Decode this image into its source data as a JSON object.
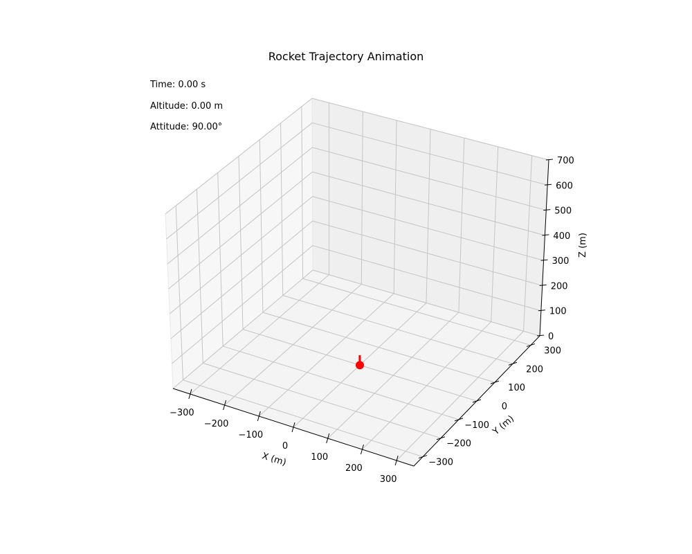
{
  "chart_data": {
    "type": "scatter",
    "projection": "3d",
    "title": "Rocket Trajectory Animation",
    "xlabel": "X (m)",
    "ylabel": "Y (m)",
    "zlabel": "Z (m)",
    "xlim": [
      -350,
      350
    ],
    "ylim": [
      -350,
      350
    ],
    "zlim": [
      0,
      700
    ],
    "xticks": [
      -300,
      -200,
      -100,
      0,
      100,
      200,
      300
    ],
    "yticks": [
      -300,
      -200,
      -100,
      0,
      100,
      200,
      300
    ],
    "zticks": [
      0,
      100,
      200,
      300,
      400,
      500,
      600,
      700
    ],
    "grid": true,
    "points": [
      {
        "x": 0,
        "y": 0,
        "z": 0
      }
    ],
    "attitude_vector": {
      "dx": 0,
      "dy": 0,
      "dz": 40
    },
    "marker_color": "#ff0000"
  },
  "status": {
    "time": "Time: 0.00 s",
    "altitude": "Altitude: 0.00 m",
    "attitude": "Attitude: 90.00°"
  }
}
